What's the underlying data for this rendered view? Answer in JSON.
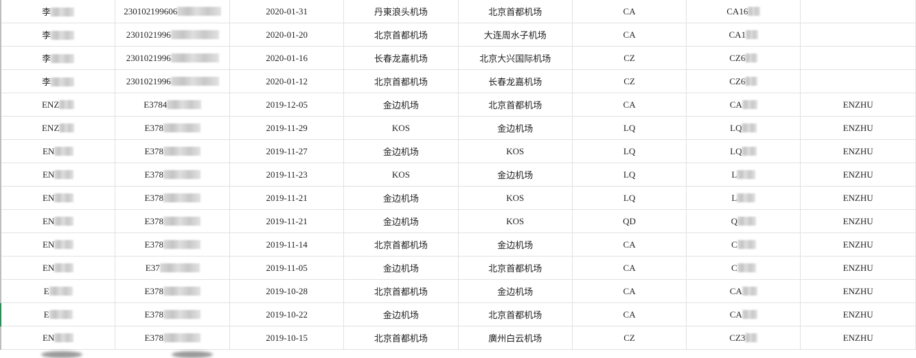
{
  "sheet": {
    "rows": [
      {
        "name": "李",
        "id": "230102199606",
        "date": "2020-01-31",
        "from": "丹東浪头机场",
        "to": "北京首都机场",
        "airline": "CA",
        "flight": "CA16",
        "extra": ""
      },
      {
        "name": "李",
        "id": "2301021996",
        "date": "2020-01-20",
        "from": "北京首都机场",
        "to": "大连周水子机场",
        "airline": "CA",
        "flight": "CA1",
        "extra": ""
      },
      {
        "name": "李",
        "id": "2301021996",
        "date": "2020-01-16",
        "from": "长春龙嘉机场",
        "to": "北京大兴国际机场",
        "airline": "CZ",
        "flight": "CZ6",
        "extra": ""
      },
      {
        "name": "李",
        "id": "2301021996",
        "date": "2020-01-12",
        "from": "北京首都机场",
        "to": "长春龙嘉机场",
        "airline": "CZ",
        "flight": "CZ6",
        "extra": ""
      },
      {
        "name": "ENZ",
        "id": "E3784",
        "date": "2019-12-05",
        "from": "金边机场",
        "to": "北京首都机场",
        "airline": "CA",
        "flight": "CA",
        "extra": "ENZHU"
      },
      {
        "name": "ENZ",
        "id": "E378",
        "date": "2019-11-29",
        "from": "KOS",
        "to": "金边机场",
        "airline": "LQ",
        "flight": "LQ",
        "extra": "ENZHU"
      },
      {
        "name": "EN",
        "id": "E378",
        "date": "2019-11-27",
        "from": "金边机场",
        "to": "KOS",
        "airline": "LQ",
        "flight": "LQ",
        "extra": "ENZHU"
      },
      {
        "name": "EN",
        "id": "E378",
        "date": "2019-11-23",
        "from": "KOS",
        "to": "金边机场",
        "airline": "LQ",
        "flight": "L",
        "extra": "ENZHU"
      },
      {
        "name": "EN",
        "id": "E378",
        "date": "2019-11-21",
        "from": "金边机场",
        "to": "KOS",
        "airline": "LQ",
        "flight": "L",
        "extra": "ENZHU"
      },
      {
        "name": "EN",
        "id": "E378",
        "date": "2019-11-21",
        "from": "金边机场",
        "to": "KOS",
        "airline": "QD",
        "flight": "Q",
        "extra": "ENZHU"
      },
      {
        "name": "EN",
        "id": "E378",
        "date": "2019-11-14",
        "from": "北京首都机场",
        "to": "金边机场",
        "airline": "CA",
        "flight": "C",
        "extra": "ENZHU"
      },
      {
        "name": "EN",
        "id": "E37",
        "date": "2019-11-05",
        "from": "金边机场",
        "to": "北京首都机场",
        "airline": "CA",
        "flight": "C",
        "extra": "ENZHU"
      },
      {
        "name": "E",
        "id": "E378",
        "date": "2019-10-28",
        "from": "北京首都机场",
        "to": "金边机场",
        "airline": "CA",
        "flight": "CA",
        "extra": "ENZHU"
      },
      {
        "name": "E",
        "id": "E378",
        "date": "2019-10-22",
        "from": "金边机场",
        "to": "北京首都机场",
        "airline": "CA",
        "flight": "CA",
        "extra": "ENZHU"
      },
      {
        "name": "EN",
        "id": "E378",
        "date": "2019-10-15",
        "from": "北京首都机场",
        "to": "廣州白云机场",
        "airline": "CZ",
        "flight": "CZ3",
        "extra": "ENZHU"
      }
    ]
  },
  "colors": {
    "grid": "#e1e1e1",
    "selection": "#2e8b57"
  }
}
